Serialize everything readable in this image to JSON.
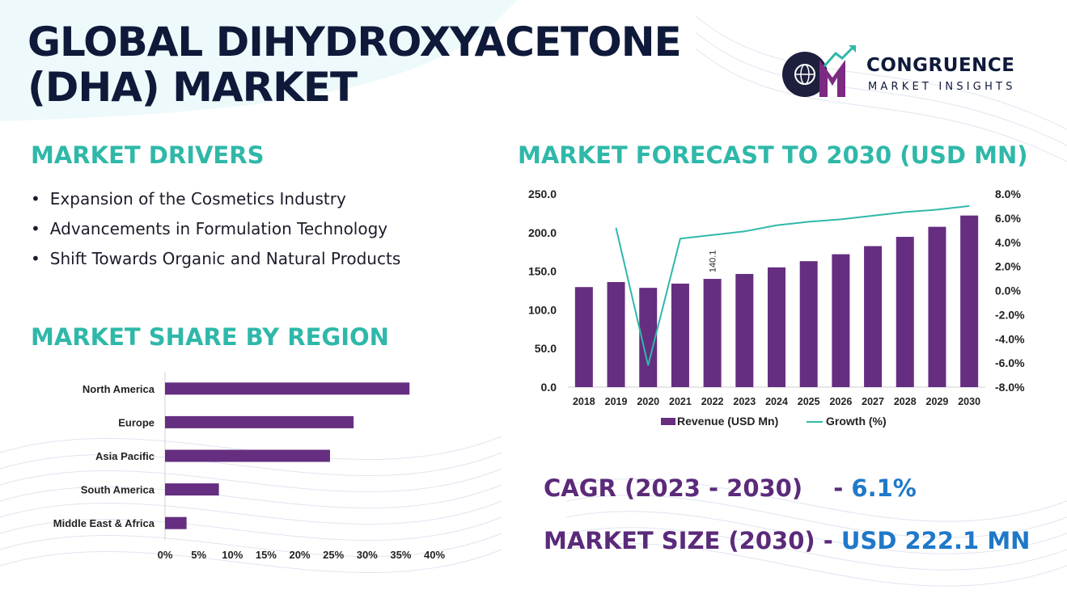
{
  "title": {
    "line1": "GLOBAL DIHYDROXYACETONE",
    "line2": "(DHA) MARKET"
  },
  "logo": {
    "name": "CONGRUENCE",
    "sub": "MARKET INSIGHTS",
    "icon": "cmi-globe-logo"
  },
  "drivers": {
    "heading": "MARKET DRIVERS",
    "items": [
      "Expansion of the Cosmetics Industry",
      "Advancements in Formulation Technology",
      "Shift Towards Organic and Natural Products"
    ]
  },
  "region": {
    "heading": "MARKET SHARE BY REGION"
  },
  "forecast": {
    "heading": "MARKET FORECAST TO 2030 (USD MN)"
  },
  "stats": {
    "cagr_label": "CAGR (2023 - 2030)",
    "cagr_sep": "-",
    "cagr_value": "6.1%",
    "size_label": "MARKET SIZE (2030)",
    "size_sep": "-",
    "size_value": "USD 222.1 MN"
  },
  "colors": {
    "bar": "#652e80",
    "growth": "#2fb8a9",
    "heading": "#2fb8a9",
    "title": "#0f1a3a",
    "stat_label": "#5b2a7a",
    "stat_value": "#1f78c8"
  },
  "chart_data": [
    {
      "type": "bar",
      "orientation": "horizontal",
      "categories": [
        "North America",
        "Europe",
        "Asia Pacific",
        "South America",
        "Middle East & Africa"
      ],
      "values": [
        36.3,
        28,
        24.5,
        8,
        3.2
      ],
      "x_ticks": [
        "0%",
        "5%",
        "10%",
        "15%",
        "20%",
        "25%",
        "30%",
        "35%",
        "40%"
      ],
      "xlim": [
        0,
        40
      ]
    },
    {
      "type": "bar+line",
      "categories": [
        "2018",
        "2019",
        "2020",
        "2021",
        "2022",
        "2023",
        "2024",
        "2025",
        "2026",
        "2027",
        "2028",
        "2029",
        "2030"
      ],
      "series": [
        {
          "name": "Revenue (USD Mn)",
          "type": "bar",
          "axis": "left",
          "values": [
            129.5,
            136,
            128.5,
            134,
            140.1,
            146.5,
            155,
            163,
            172,
            182.5,
            194.5,
            207.5,
            222.1
          ]
        },
        {
          "name": "Growth (%)",
          "type": "line",
          "axis": "right",
          "values": [
            null,
            5.2,
            -6.2,
            4.3,
            4.6,
            4.9,
            5.4,
            5.7,
            5.9,
            6.2,
            6.5,
            6.7,
            7.0
          ]
        }
      ],
      "data_labels": [
        {
          "index": 4,
          "text": "140.1"
        }
      ],
      "y_left_ticks": [
        "0.0",
        "50.0",
        "100.0",
        "150.0",
        "200.0",
        "250.0"
      ],
      "ylim_left": [
        0,
        250
      ],
      "y_right_ticks": [
        "-8.0%",
        "-6.0%",
        "-4.0%",
        "-2.0%",
        "0.0%",
        "2.0%",
        "4.0%",
        "6.0%",
        "8.0%"
      ],
      "ylim_right": [
        -8,
        8
      ],
      "legend": "bottom"
    }
  ]
}
